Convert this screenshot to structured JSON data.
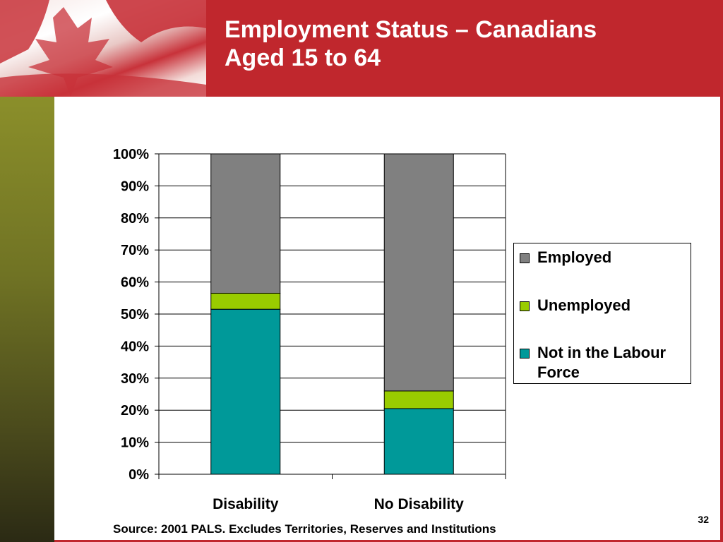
{
  "slide": {
    "title_line1": "Employment Status – Canadians",
    "title_line2": "Aged 15 to 64",
    "source": "Source: 2001 PALS.  Excludes Territories, Reserves and Institutions",
    "page_number": "32",
    "colors": {
      "header": "#c0272d",
      "left_band": "#707324"
    }
  },
  "chart_data": {
    "type": "bar",
    "stacked": true,
    "percent": true,
    "categories": [
      "Disability",
      "No Disability"
    ],
    "series": [
      {
        "name": "Not in the Labour Force",
        "values": [
          51.5,
          20.5
        ],
        "color": "#009999"
      },
      {
        "name": "Unemployed",
        "values": [
          5,
          5.5
        ],
        "color": "#99cc00"
      },
      {
        "name": "Employed",
        "values": [
          43.5,
          74
        ],
        "color": "#808080"
      }
    ],
    "ylim": [
      0,
      100
    ],
    "yticks": [
      "0%",
      "10%",
      "20%",
      "30%",
      "40%",
      "50%",
      "60%",
      "70%",
      "80%",
      "90%",
      "100%"
    ],
    "grid": true,
    "legend": {
      "position": "right",
      "order": [
        "Employed",
        "Unemployed",
        "Not in the Labour Force"
      ]
    }
  }
}
